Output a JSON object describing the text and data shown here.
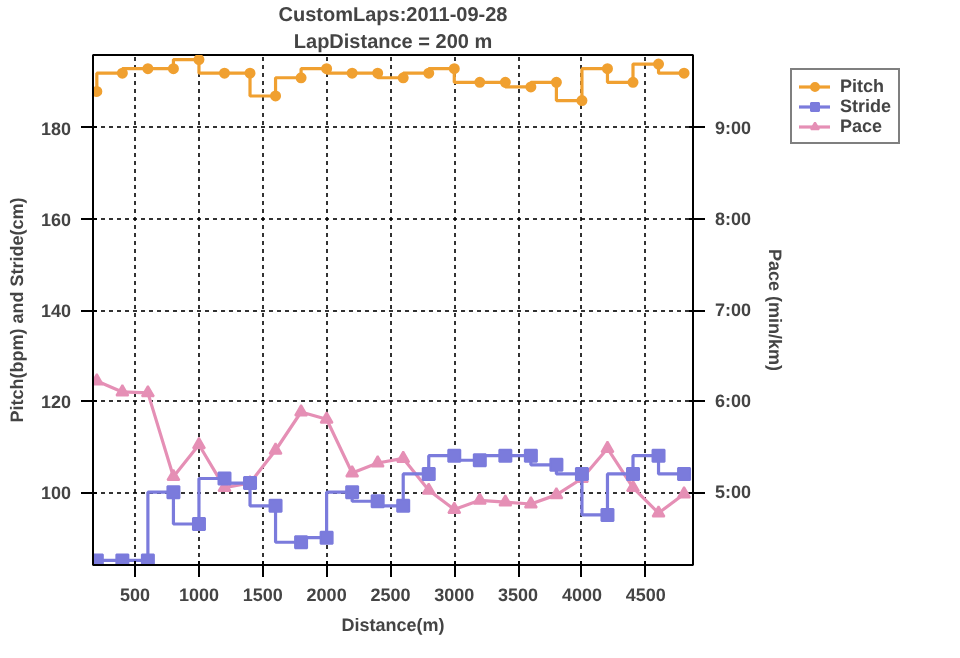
{
  "chart_data": {
    "type": "step",
    "title": "CustomLaps:2011-09-28",
    "subtitle": "LapDistance = 200 m",
    "xlabel": "Distance(m)",
    "ylabel": "Pitch(bpm) and Stride(cm)",
    "y2label": "Pace (min/km)",
    "x": [
      200,
      400,
      600,
      800,
      1000,
      1200,
      1400,
      1600,
      1800,
      2000,
      2200,
      2400,
      2600,
      2800,
      3000,
      3200,
      3400,
      3600,
      3800,
      4000,
      4200,
      4400,
      4600,
      4800
    ],
    "series": [
      {
        "name": "Pitch",
        "color": "#f0a030",
        "marker": "circle",
        "values": [
          188,
          192,
          193,
          193,
          195,
          192,
          192,
          187,
          191,
          193,
          192,
          192,
          191,
          192,
          193,
          190,
          190,
          189,
          190,
          186,
          193,
          190,
          194,
          192
        ]
      },
      {
        "name": "Stride",
        "color": "#7b7bdc",
        "marker": "square",
        "values": [
          85,
          85,
          85,
          100,
          93,
          103,
          102,
          97,
          89,
          90,
          100,
          98,
          97,
          104,
          108,
          107,
          108,
          108,
          106,
          104,
          95,
          104,
          108,
          104
        ]
      },
      {
        "name": "Pace",
        "type": "line",
        "axis": "y2",
        "color": "#e58fb5",
        "marker": "triangle",
        "values": [
          6.22,
          6.1,
          6.09,
          5.17,
          5.52,
          5.05,
          5.1,
          5.46,
          5.88,
          5.8,
          5.21,
          5.32,
          5.37,
          5.02,
          4.81,
          4.91,
          4.89,
          4.87,
          4.97,
          5.15,
          5.48,
          5.05,
          4.77,
          4.98
        ]
      }
    ],
    "xlim": [
      170,
      4870
    ],
    "xticks": [
      500,
      1000,
      1500,
      2000,
      2500,
      3000,
      3500,
      4000,
      4500
    ],
    "ylim": [
      84,
      196
    ],
    "yticks": [
      100,
      120,
      140,
      160,
      180
    ],
    "y2lim": [
      4.2,
      9.8
    ],
    "y2ticks": [
      {
        "value": 5,
        "label": "5:00"
      },
      {
        "value": 6,
        "label": "6:00"
      },
      {
        "value": 7,
        "label": "7:00"
      },
      {
        "value": 8,
        "label": "8:00"
      },
      {
        "value": 9,
        "label": "9:00"
      }
    ],
    "grid": true,
    "legend": "right",
    "line_style": "solid"
  }
}
